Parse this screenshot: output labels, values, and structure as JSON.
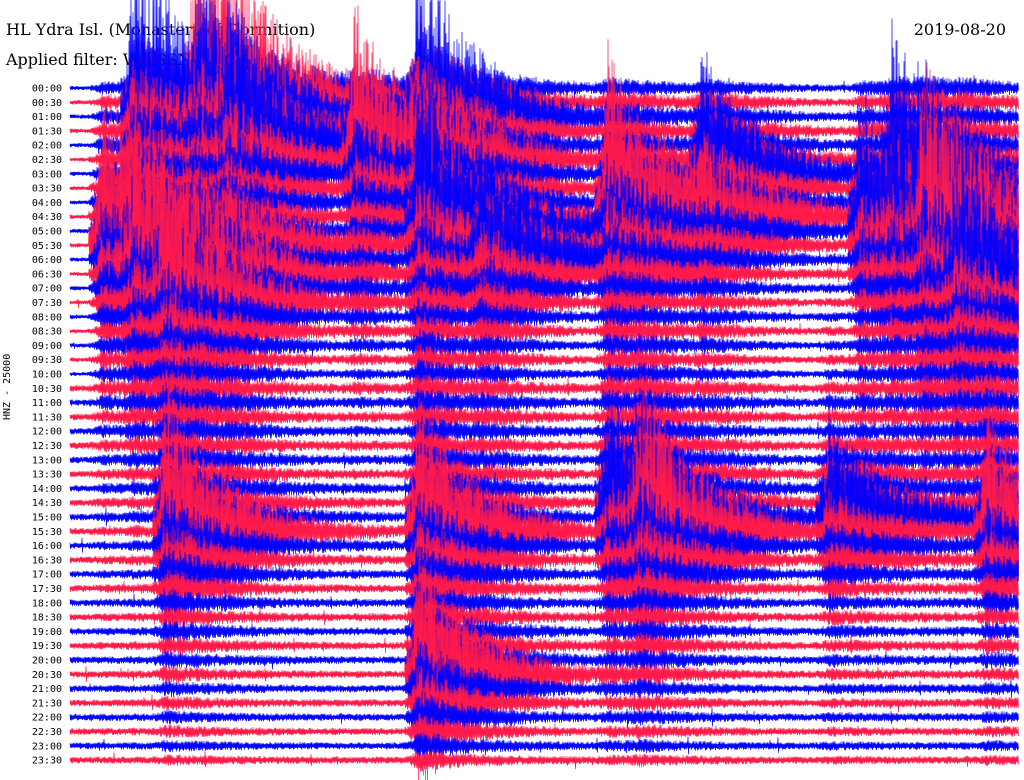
{
  "header": {
    "title": "HL Ydra Isl. (Monastery of Dormition)",
    "date": "2019-08-20",
    "filter": "Applied filter: WWSSN-SP"
  },
  "axis": {
    "ylabel": "HNZ - 25000"
  },
  "colors": {
    "blue": "#0000ff",
    "red": "#ff1a4a",
    "background": "#ffffff"
  },
  "chart_data": {
    "type": "line",
    "title": "HL Ydra Isl. (Monastery of Dormition)",
    "subtitle": "Applied filter: WWSSN-SP",
    "ylabel": "HNZ - 25000",
    "row_labels": [
      "00:00",
      "00:30",
      "01:00",
      "01:30",
      "02:00",
      "02:30",
      "03:00",
      "03:30",
      "04:00",
      "04:30",
      "05:00",
      "05:30",
      "06:00",
      "06:30",
      "07:00",
      "07:30",
      "08:00",
      "08:30",
      "09:00",
      "09:30",
      "10:00",
      "10:30",
      "11:00",
      "11:30",
      "12:00",
      "12:30",
      "13:00",
      "13:30",
      "14:00",
      "14:30",
      "15:00",
      "15:30",
      "16:00",
      "16:30",
      "17:00",
      "17:30",
      "18:00",
      "18:30",
      "19:00",
      "19:30",
      "20:00",
      "20:30",
      "21:00",
      "21:30",
      "22:00",
      "22:30",
      "23:00",
      "23:30"
    ],
    "row_colors": [
      "blue",
      "red"
    ],
    "minutes_per_row": 30,
    "events": [
      {
        "row": 2,
        "minute": 2,
        "amp": 180,
        "dur": 5
      },
      {
        "row": 2,
        "minute": 11,
        "amp": 160,
        "dur": 4
      },
      {
        "row": 4,
        "minute": 5,
        "amp": 130,
        "dur": 4
      },
      {
        "row": 5,
        "minute": 9,
        "amp": 150,
        "dur": 5
      },
      {
        "row": 6,
        "minute": 20,
        "amp": 120,
        "dur": 4
      },
      {
        "row": 9,
        "minute": 17,
        "amp": 170,
        "dur": 6
      },
      {
        "row": 8,
        "minute": 26,
        "amp": 160,
        "dur": 5
      },
      {
        "row": 1,
        "minute": 4,
        "amp": 190,
        "dur": 5
      },
      {
        "row": 11,
        "minute": 1,
        "amp": 170,
        "dur": 6
      },
      {
        "row": 10,
        "minute": 11,
        "amp": 150,
        "dur": 5
      },
      {
        "row": 12,
        "minute": 13,
        "amp": 110,
        "dur": 4
      },
      {
        "row": 11,
        "minute": 27,
        "amp": 160,
        "dur": 5
      },
      {
        "row": 10,
        "minute": 25,
        "amp": 150,
        "dur": 5
      },
      {
        "row": 13,
        "minute": 2,
        "amp": 120,
        "dur": 5
      },
      {
        "row": 14,
        "minute": 28,
        "amp": 130,
        "dur": 5
      },
      {
        "row": 15,
        "minute": 3,
        "amp": 110,
        "dur": 4
      },
      {
        "row": 31,
        "minute": 3,
        "amp": 150,
        "dur": 4
      },
      {
        "row": 31,
        "minute": 11,
        "amp": 130,
        "dur": 4
      },
      {
        "row": 31,
        "minute": 18,
        "amp": 140,
        "dur": 4
      },
      {
        "row": 31,
        "minute": 29,
        "amp": 120,
        "dur": 4
      },
      {
        "row": 30,
        "minute": 17,
        "amp": 140,
        "dur": 4
      },
      {
        "row": 30,
        "minute": 24,
        "amp": 100,
        "dur": 4
      },
      {
        "row": 41,
        "minute": 11,
        "amp": 130,
        "dur": 4
      }
    ]
  }
}
